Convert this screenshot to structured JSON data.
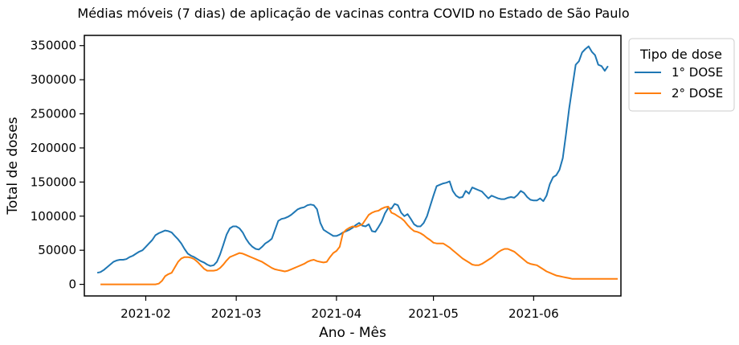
{
  "chart_data": {
    "type": "line",
    "title": "Médias móveis (7 dias) de aplicação de vacinas contra COVID no Estado de São Paulo",
    "xlabel": "Ano - Mês",
    "ylabel": "Total de doses",
    "x_start": "2021-01-18",
    "x_range": [
      "2021-01-13",
      "2021-06-28"
    ],
    "ylim": [
      -17000,
      365000
    ],
    "x_ticks": [
      "2021-02",
      "2021-03",
      "2021-04",
      "2021-05",
      "2021-06"
    ],
    "y_ticks": [
      "0",
      "50000",
      "100000",
      "150000",
      "200000",
      "250000",
      "300000",
      "350000"
    ],
    "y_tick_values": [
      0,
      50000,
      100000,
      150000,
      200000,
      250000,
      300000,
      350000
    ],
    "legend": {
      "title": "Tipo de dose",
      "placement": "outside-top-right"
    },
    "grid": false,
    "series": [
      {
        "name": "1° DOSE",
        "color": "#1f77b4",
        "x_start": "2021-01-17",
        "values": [
          17000,
          18000,
          21000,
          25000,
          29000,
          33000,
          35000,
          36000,
          36000,
          37000,
          40000,
          42000,
          45000,
          48000,
          50000,
          55000,
          60000,
          65000,
          72000,
          75000,
          77000,
          79000,
          78000,
          76000,
          71000,
          66000,
          60000,
          52000,
          45000,
          42000,
          40000,
          37000,
          34000,
          32000,
          29000,
          27000,
          28000,
          33000,
          44000,
          58000,
          73000,
          82000,
          85000,
          85000,
          82000,
          76000,
          67000,
          60000,
          55000,
          52000,
          51000,
          55000,
          60000,
          63000,
          67000,
          80000,
          93000,
          96000,
          97000,
          99000,
          102000,
          106000,
          110000,
          112000,
          113000,
          116000,
          117000,
          116000,
          110000,
          90000,
          80000,
          77000,
          74000,
          71000,
          71000,
          73000,
          76000,
          78000,
          80000,
          83000,
          87000,
          90000,
          86000,
          85000,
          88000,
          78000,
          77000,
          84000,
          92000,
          104000,
          112000,
          111000,
          118000,
          116000,
          105000,
          100000,
          103000,
          96000,
          88000,
          85000,
          85000,
          90000,
          100000,
          115000,
          130000,
          144000,
          146000,
          148000,
          149000,
          151000,
          137000,
          130000,
          127000,
          128000,
          137000,
          133000,
          142000,
          140000,
          138000,
          136000,
          131000,
          126000,
          130000,
          128000,
          126000,
          125000,
          125000,
          127000,
          128000,
          127000,
          131000,
          137000,
          134000,
          128000,
          124000,
          123000,
          123000,
          126000,
          122000,
          130000,
          147000,
          157000,
          160000,
          168000,
          185000,
          220000,
          258000,
          290000,
          322000,
          327000,
          340000,
          345000,
          349000,
          341000,
          336000,
          322000,
          320000,
          313000,
          320000
        ]
      },
      {
        "name": "2° DOSE",
        "color": "#ff7f0e",
        "x_start": "2021-01-18",
        "values": [
          0,
          0,
          0,
          0,
          0,
          0,
          0,
          0,
          0,
          0,
          0,
          0,
          0,
          0,
          0,
          0,
          0,
          0,
          1000,
          5000,
          12000,
          15000,
          17000,
          25000,
          33000,
          38000,
          40000,
          40000,
          39000,
          37000,
          33000,
          28000,
          23000,
          20000,
          20000,
          20000,
          21000,
          24000,
          29000,
          35000,
          40000,
          42000,
          44000,
          46000,
          45000,
          43000,
          41000,
          39000,
          37000,
          35000,
          33000,
          30000,
          27000,
          24000,
          22000,
          21000,
          20000,
          19000,
          20000,
          22000,
          24000,
          26000,
          28000,
          30000,
          33000,
          35000,
          36000,
          34000,
          33000,
          32000,
          33000,
          40000,
          46000,
          49000,
          55000,
          75000,
          80000,
          83000,
          85000,
          84000,
          86000,
          88000,
          95000,
          102000,
          105000,
          107000,
          108000,
          111000,
          113000,
          114000,
          105000,
          103000,
          100000,
          97000,
          93000,
          87000,
          82000,
          78000,
          77000,
          75000,
          72000,
          68000,
          65000,
          61000,
          60000,
          60000,
          60000,
          57000,
          54000,
          50000,
          46000,
          42000,
          38000,
          35000,
          32000,
          29000,
          28000,
          28000,
          30000,
          33000,
          36000,
          39000,
          43000,
          47000,
          50000,
          52000,
          52000,
          50000,
          48000,
          44000,
          40000,
          36000,
          32000,
          30000,
          29000,
          28000,
          25000,
          22000,
          19000,
          17000,
          15000,
          13000,
          12000,
          11000,
          10000,
          9000,
          8000,
          8000,
          8000,
          8000,
          8000,
          8000,
          8000,
          8000,
          8000,
          8000,
          8000,
          8000,
          8000,
          8000,
          8000
        ]
      }
    ]
  }
}
